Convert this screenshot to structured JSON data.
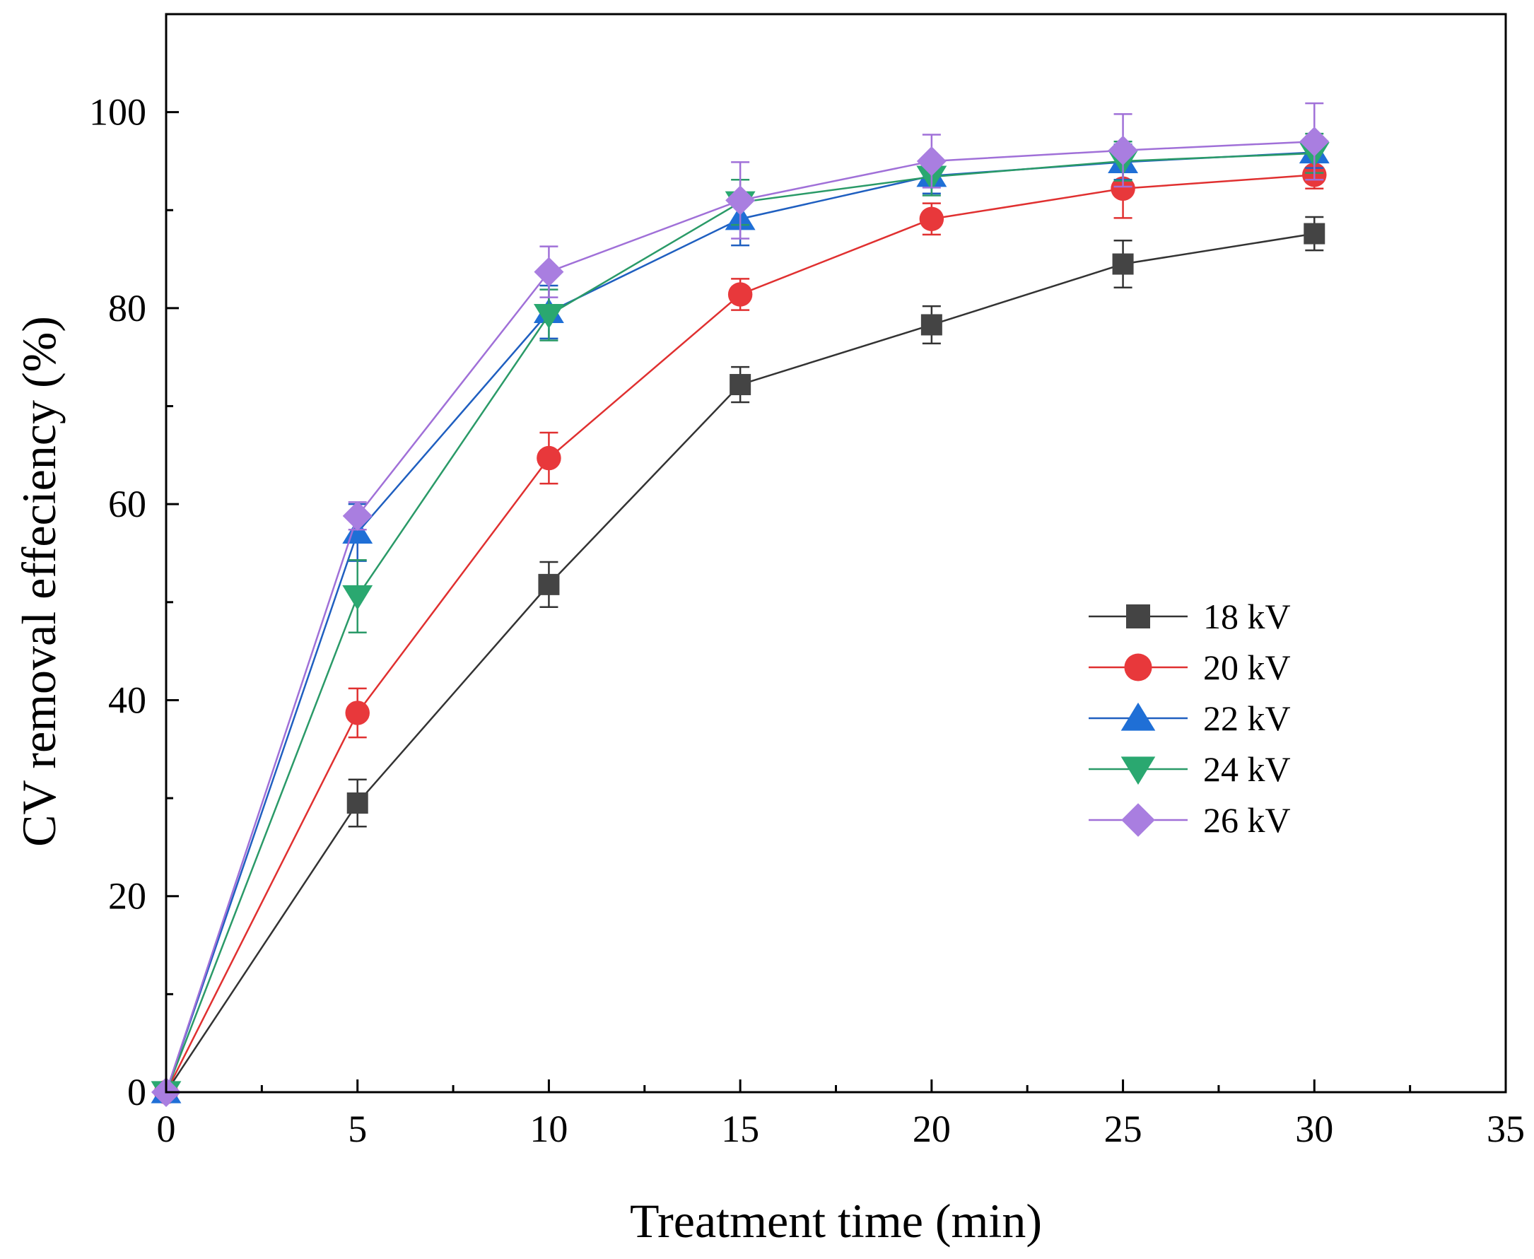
{
  "chart_data": {
    "type": "line",
    "xlabel": "Treatment time (min)",
    "ylabel": "CV removal effeciency (%)",
    "xlim": [
      0,
      35
    ],
    "ylim": [
      0,
      110
    ],
    "xticks": [
      0,
      5,
      10,
      15,
      20,
      25,
      30,
      35
    ],
    "yticks": [
      0,
      20,
      40,
      60,
      80,
      100
    ],
    "grid": false,
    "legend_position": "right-middle",
    "x": [
      0,
      5,
      10,
      15,
      20,
      25,
      30
    ],
    "series": [
      {
        "name": "18 kV",
        "marker": "square",
        "color": "#444444",
        "line_color": "#333333",
        "values": [
          0,
          29.5,
          51.8,
          72.2,
          78.3,
          84.5,
          87.6
        ],
        "errors": [
          0,
          2.4,
          2.3,
          1.8,
          1.9,
          2.4,
          1.7
        ]
      },
      {
        "name": "20 kV",
        "marker": "circle",
        "color": "#e8383b",
        "line_color": "#e03030",
        "values": [
          0,
          38.7,
          64.7,
          81.4,
          89.1,
          92.2,
          93.6
        ],
        "errors": [
          0,
          2.5,
          2.6,
          1.6,
          1.6,
          3.0,
          1.4
        ]
      },
      {
        "name": "22 kV",
        "marker": "triangle-up",
        "color": "#1f6fd6",
        "line_color": "#1f5fc0",
        "values": [
          0,
          57.1,
          79.6,
          89.1,
          93.5,
          94.9,
          95.9
        ],
        "errors": [
          0,
          2.9,
          2.7,
          2.7,
          1.8,
          1.8,
          1.6
        ]
      },
      {
        "name": "24 kV",
        "marker": "triangle-down",
        "color": "#2aa870",
        "line_color": "#2a9a68",
        "values": [
          0,
          50.6,
          79.3,
          90.8,
          93.4,
          95.0,
          95.8
        ],
        "errors": [
          0,
          3.7,
          2.6,
          2.3,
          1.9,
          2.0,
          2.0
        ]
      },
      {
        "name": "26 kV",
        "marker": "diamond",
        "color": "#a97ee0",
        "line_color": "#a070d8",
        "values": [
          0,
          58.8,
          83.7,
          91.0,
          95.0,
          96.1,
          97.0
        ],
        "errors": [
          0,
          1.4,
          2.6,
          3.9,
          2.7,
          3.7,
          3.9
        ]
      }
    ]
  }
}
